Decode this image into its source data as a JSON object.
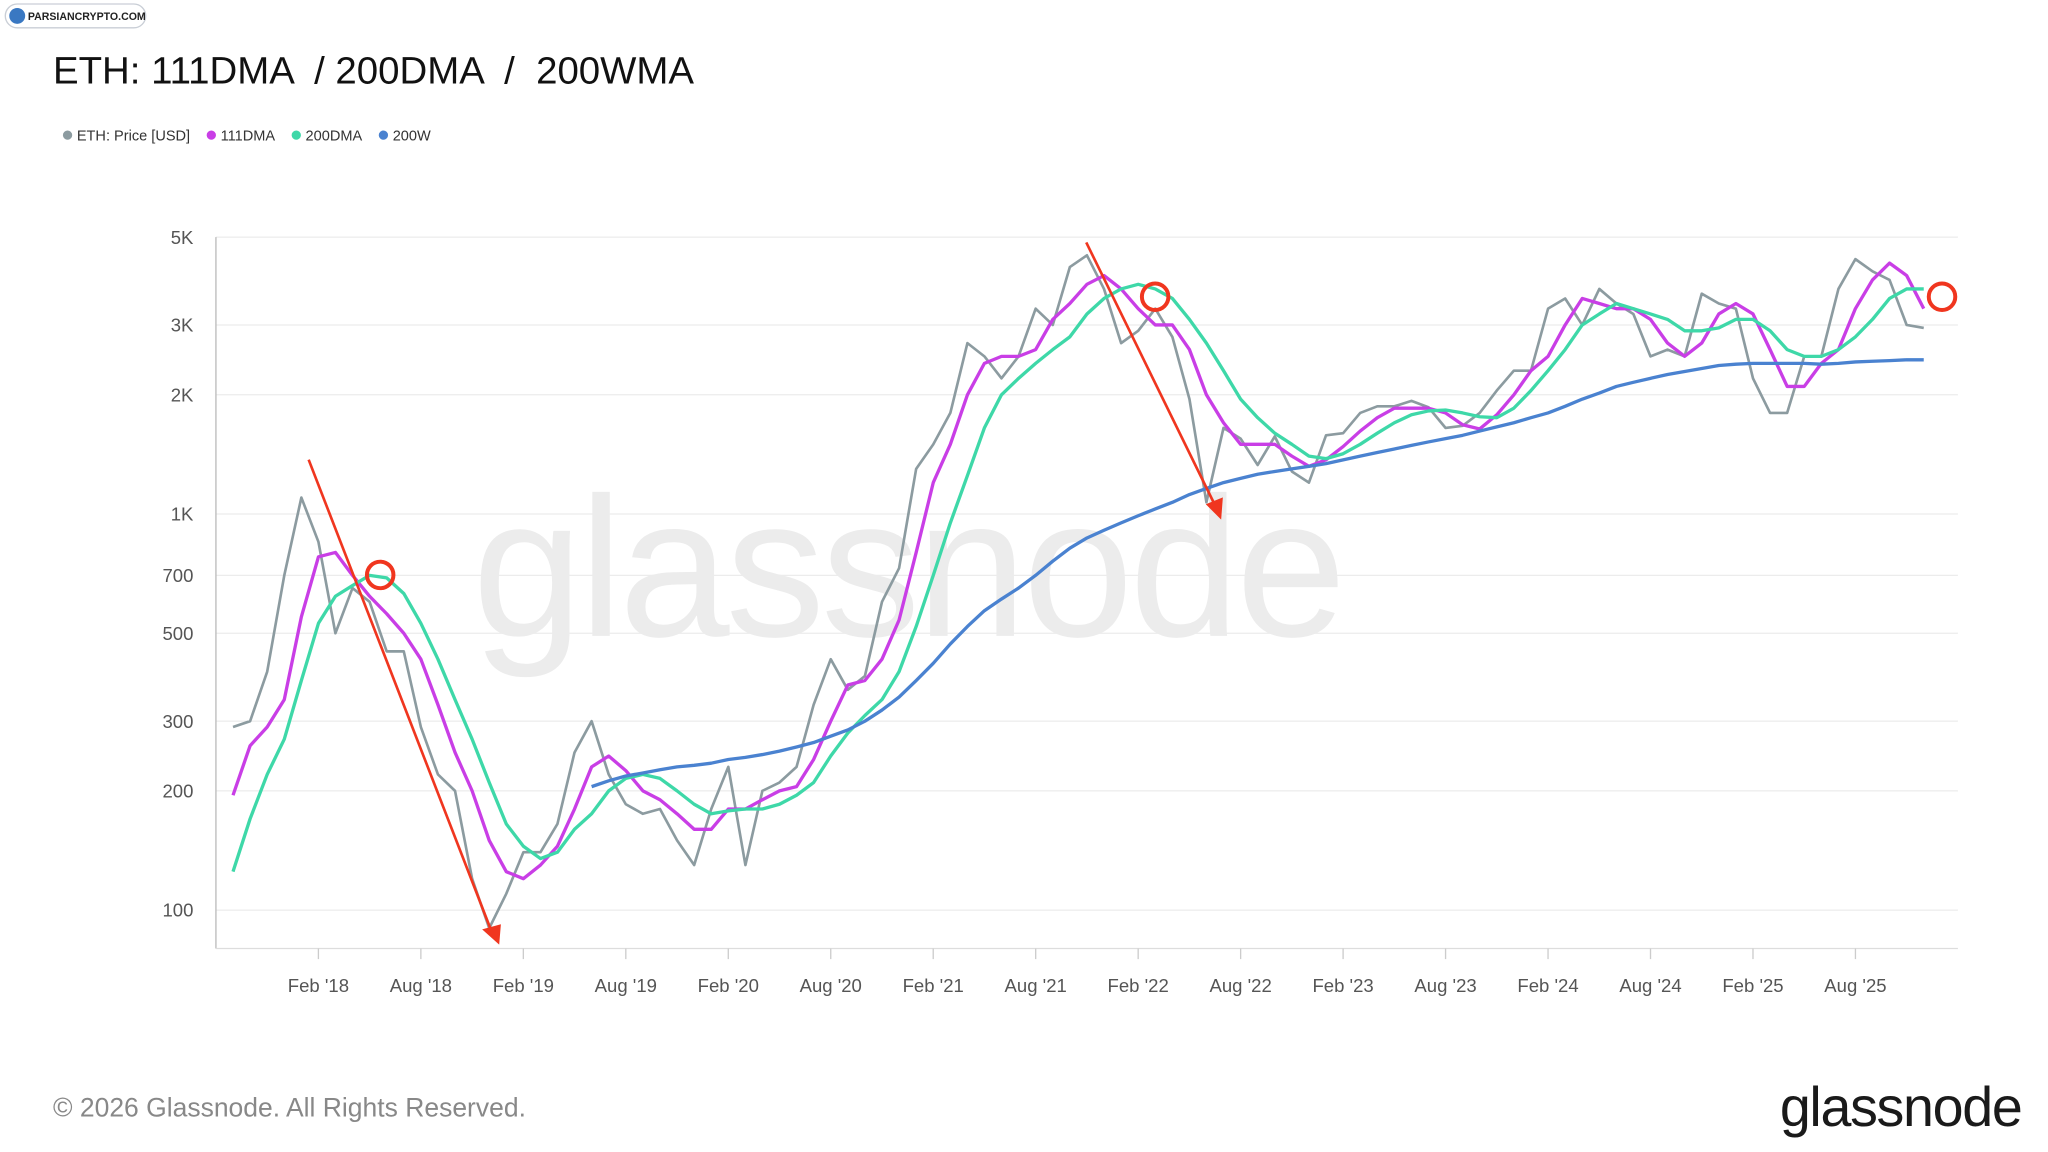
{
  "chart_data": {
    "type": "line",
    "title": "ETH: 111DMA  / 200DMA  /  200WMA",
    "source_badge": "PARSIANCRYPTO.COM",
    "watermark": "glassnode",
    "footer": "© 2026 Glassnode. All Rights Reserved.",
    "logo": "glassnode",
    "ylog": true,
    "grid": true,
    "legend": "top-left",
    "xlim": [
      "2017-08",
      "2026-02"
    ],
    "ylim": [
      80,
      5000
    ],
    "yticks": [
      100,
      200,
      300,
      500,
      700,
      {
        "value": 1000,
        "label": "1K"
      },
      {
        "value": 2000,
        "label": "2K"
      },
      {
        "value": 3000,
        "label": "3K"
      },
      {
        "value": 5000,
        "label": "5K"
      }
    ],
    "xticks": [
      {
        "value": "2018-02",
        "label": "Feb '18"
      },
      {
        "value": "2018-08",
        "label": "Aug '18"
      },
      {
        "value": "2019-02",
        "label": "Feb '19"
      },
      {
        "value": "2019-08",
        "label": "Aug '19"
      },
      {
        "value": "2020-02",
        "label": "Feb '20"
      },
      {
        "value": "2020-08",
        "label": "Aug '20"
      },
      {
        "value": "2021-02",
        "label": "Feb '21"
      },
      {
        "value": "2021-08",
        "label": "Aug '21"
      },
      {
        "value": "2022-02",
        "label": "Feb '22"
      },
      {
        "value": "2022-08",
        "label": "Aug '22"
      },
      {
        "value": "2023-02",
        "label": "Feb '23"
      },
      {
        "value": "2023-08",
        "label": "Aug '23"
      },
      {
        "value": "2024-02",
        "label": "Feb '24"
      },
      {
        "value": "2024-08",
        "label": "Aug '24"
      },
      {
        "value": "2025-02",
        "label": "Feb '25"
      },
      {
        "value": "2025-08",
        "label": "Aug '25"
      }
    ],
    "x": [
      "2017-09",
      "2017-10",
      "2017-11",
      "2017-12",
      "2018-01",
      "2018-02",
      "2018-03",
      "2018-04",
      "2018-05",
      "2018-06",
      "2018-07",
      "2018-08",
      "2018-09",
      "2018-10",
      "2018-11",
      "2018-12",
      "2019-01",
      "2019-02",
      "2019-03",
      "2019-04",
      "2019-05",
      "2019-06",
      "2019-07",
      "2019-08",
      "2019-09",
      "2019-10",
      "2019-11",
      "2019-12",
      "2020-01",
      "2020-02",
      "2020-03",
      "2020-04",
      "2020-05",
      "2020-06",
      "2020-07",
      "2020-08",
      "2020-09",
      "2020-10",
      "2020-11",
      "2020-12",
      "2021-01",
      "2021-02",
      "2021-03",
      "2021-04",
      "2021-05",
      "2021-06",
      "2021-07",
      "2021-08",
      "2021-09",
      "2021-10",
      "2021-11",
      "2021-12",
      "2022-01",
      "2022-02",
      "2022-03",
      "2022-04",
      "2022-05",
      "2022-06",
      "2022-07",
      "2022-08",
      "2022-09",
      "2022-10",
      "2022-11",
      "2022-12",
      "2023-01",
      "2023-02",
      "2023-03",
      "2023-04",
      "2023-05",
      "2023-06",
      "2023-07",
      "2023-08",
      "2023-09",
      "2023-10",
      "2023-11",
      "2023-12",
      "2024-01",
      "2024-02",
      "2024-03",
      "2024-04",
      "2024-05",
      "2024-06",
      "2024-07",
      "2024-08",
      "2024-09",
      "2024-10",
      "2024-11",
      "2024-12",
      "2025-01",
      "2025-02",
      "2025-03",
      "2025-04",
      "2025-05",
      "2025-06",
      "2025-07",
      "2025-08",
      "2025-09",
      "2025-10",
      "2025-11",
      "2025-12"
    ],
    "series": [
      {
        "name": "ETH: Price [USD]",
        "color": "#8c9ba0",
        "width": 2,
        "values": [
          290,
          300,
          400,
          700,
          1100,
          850,
          500,
          650,
          600,
          450,
          450,
          290,
          220,
          200,
          120,
          90,
          110,
          140,
          140,
          165,
          250,
          300,
          220,
          185,
          175,
          180,
          150,
          130,
          180,
          230,
          130,
          200,
          210,
          230,
          330,
          430,
          360,
          390,
          600,
          730,
          1300,
          1500,
          1800,
          2700,
          2500,
          2200,
          2500,
          3300,
          3000,
          4200,
          4500,
          3700,
          2700,
          2900,
          3300,
          2800,
          1950,
          1070,
          1650,
          1550,
          1330,
          1570,
          1280,
          1200,
          1580,
          1600,
          1800,
          1870,
          1870,
          1930,
          1860,
          1650,
          1670,
          1800,
          2050,
          2300,
          2300,
          3300,
          3500,
          3000,
          3700,
          3400,
          3200,
          2500,
          2600,
          2500,
          3600,
          3400,
          3300,
          2200,
          1800,
          1800,
          2500,
          2500,
          3700,
          4400,
          4100,
          3900,
          3000,
          2950
        ]
      },
      {
        "name": "111DMA",
        "color": "#c93ee6",
        "width": 2.5,
        "values": [
          195,
          260,
          290,
          340,
          550,
          780,
          800,
          700,
          620,
          560,
          500,
          430,
          330,
          250,
          200,
          150,
          125,
          120,
          130,
          145,
          180,
          230,
          245,
          225,
          200,
          190,
          175,
          160,
          160,
          180,
          180,
          190,
          200,
          205,
          240,
          300,
          370,
          380,
          430,
          540,
          800,
          1200,
          1500,
          2000,
          2400,
          2500,
          2500,
          2600,
          3100,
          3400,
          3800,
          4000,
          3700,
          3300,
          3000,
          3000,
          2600,
          2000,
          1700,
          1500,
          1500,
          1500,
          1400,
          1320,
          1370,
          1480,
          1620,
          1750,
          1850,
          1850,
          1850,
          1800,
          1680,
          1640,
          1780,
          2000,
          2300,
          2500,
          3000,
          3500,
          3400,
          3300,
          3300,
          3100,
          2700,
          2500,
          2700,
          3200,
          3400,
          3200,
          2600,
          2100,
          2100,
          2400,
          2600,
          3300,
          3900,
          4300,
          4000,
          3300
        ]
      },
      {
        "name": "200DMA",
        "color": "#3ed8a8",
        "width": 2.5,
        "values": [
          125,
          170,
          220,
          270,
          380,
          530,
          620,
          660,
          700,
          690,
          630,
          530,
          430,
          340,
          270,
          210,
          165,
          145,
          135,
          140,
          160,
          175,
          200,
          215,
          220,
          215,
          200,
          185,
          175,
          178,
          180,
          180,
          185,
          195,
          210,
          245,
          280,
          310,
          340,
          400,
          520,
          700,
          950,
          1250,
          1650,
          2000,
          2200,
          2400,
          2600,
          2800,
          3200,
          3500,
          3700,
          3800,
          3700,
          3500,
          3100,
          2700,
          2300,
          1950,
          1750,
          1600,
          1500,
          1400,
          1380,
          1420,
          1500,
          1600,
          1700,
          1780,
          1820,
          1830,
          1800,
          1760,
          1750,
          1850,
          2050,
          2300,
          2600,
          3000,
          3200,
          3400,
          3300,
          3200,
          3100,
          2900,
          2900,
          2950,
          3100,
          3100,
          2900,
          2600,
          2500,
          2500,
          2600,
          2800,
          3100,
          3500,
          3700,
          3700
        ]
      },
      {
        "name": "200W",
        "color": "#4a82d0",
        "width": 2.5,
        "values": [
          null,
          null,
          null,
          null,
          null,
          null,
          null,
          null,
          null,
          null,
          null,
          null,
          null,
          null,
          null,
          null,
          null,
          null,
          null,
          null,
          null,
          205,
          212,
          218,
          222,
          226,
          230,
          232,
          235,
          240,
          243,
          247,
          252,
          258,
          265,
          275,
          285,
          300,
          320,
          345,
          380,
          420,
          470,
          520,
          570,
          610,
          650,
          700,
          760,
          820,
          870,
          910,
          950,
          990,
          1030,
          1070,
          1120,
          1160,
          1200,
          1230,
          1260,
          1280,
          1300,
          1320,
          1340,
          1370,
          1400,
          1430,
          1460,
          1490,
          1520,
          1550,
          1580,
          1620,
          1660,
          1700,
          1750,
          1800,
          1870,
          1950,
          2020,
          2100,
          2150,
          2200,
          2250,
          2290,
          2330,
          2370,
          2390,
          2400,
          2400,
          2400,
          2400,
          2390,
          2400,
          2420,
          2430,
          2440,
          2450,
          2450
        ]
      }
    ]
  }
}
